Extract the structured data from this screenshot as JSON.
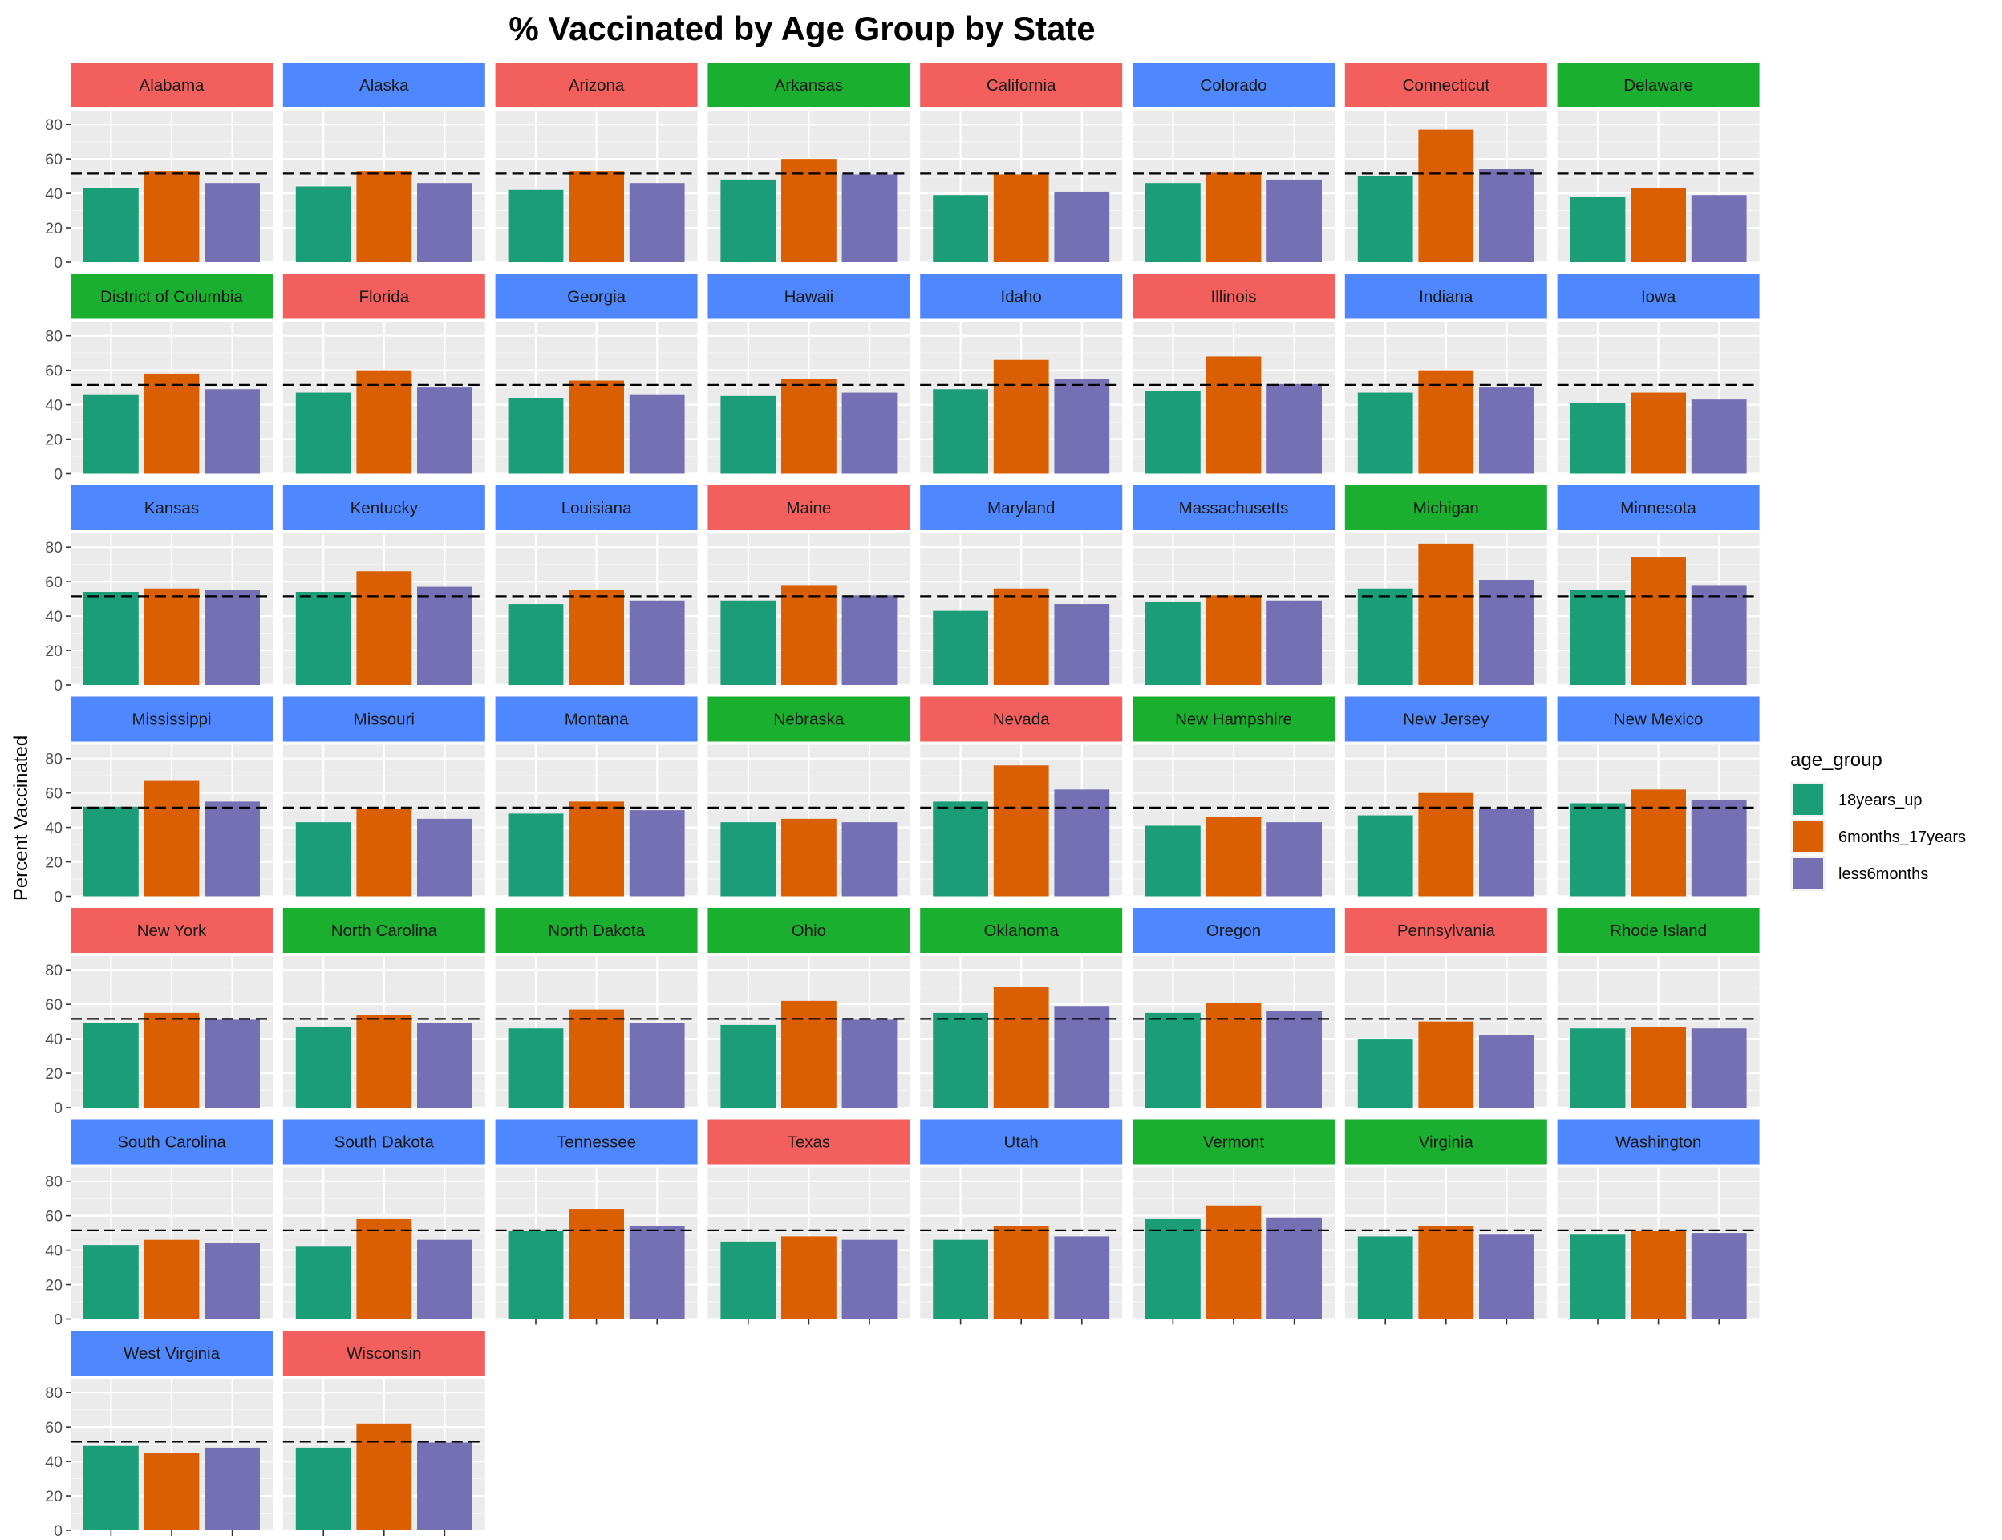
{
  "chart_data": {
    "type": "bar",
    "title": "% Vaccinated by Age Group by State",
    "xlabel": "",
    "ylabel": "Percent Vaccinated",
    "ylim": [
      0,
      88
    ],
    "yticks": [
      0,
      20,
      40,
      60,
      80
    ],
    "reference_line": {
      "y": 51.5,
      "style": "dashed",
      "color": "#000000"
    },
    "legend": {
      "title": "age_group",
      "placement": "right",
      "entries": [
        {
          "name": "18years_up",
          "color": "#1B9E77"
        },
        {
          "name": "6months_17years",
          "color": "#D95F02"
        },
        {
          "name": "less6months",
          "color": "#7570B3"
        }
      ]
    },
    "strip_colors": {
      "red": "#F25F5C",
      "blue": "#4F87FF",
      "green": "#1AAF2E"
    },
    "grid": true,
    "facet_columns": 8,
    "panels": [
      {
        "state": "Alabama",
        "strip": "red",
        "values": [
          43,
          53,
          46
        ]
      },
      {
        "state": "Alaska",
        "strip": "blue",
        "values": [
          44,
          53,
          46
        ]
      },
      {
        "state": "Arizona",
        "strip": "red",
        "values": [
          42,
          53,
          46
        ]
      },
      {
        "state": "Arkansas",
        "strip": "green",
        "values": [
          48,
          60,
          51
        ]
      },
      {
        "state": "California",
        "strip": "red",
        "values": [
          39,
          51,
          41
        ]
      },
      {
        "state": "Colorado",
        "strip": "blue",
        "values": [
          46,
          52,
          48
        ]
      },
      {
        "state": "Connecticut",
        "strip": "red",
        "values": [
          50,
          77,
          54
        ]
      },
      {
        "state": "Delaware",
        "strip": "green",
        "values": [
          38,
          43,
          39
        ]
      },
      {
        "state": "District of Columbia",
        "strip": "green",
        "values": [
          46,
          58,
          49
        ]
      },
      {
        "state": "Florida",
        "strip": "red",
        "values": [
          47,
          60,
          50
        ]
      },
      {
        "state": "Georgia",
        "strip": "blue",
        "values": [
          44,
          54,
          46
        ]
      },
      {
        "state": "Hawaii",
        "strip": "blue",
        "values": [
          45,
          55,
          47
        ]
      },
      {
        "state": "Idaho",
        "strip": "blue",
        "values": [
          49,
          66,
          55
        ]
      },
      {
        "state": "Illinois",
        "strip": "red",
        "values": [
          48,
          68,
          52
        ]
      },
      {
        "state": "Indiana",
        "strip": "blue",
        "values": [
          47,
          60,
          50
        ]
      },
      {
        "state": "Iowa",
        "strip": "blue",
        "values": [
          41,
          47,
          43
        ]
      },
      {
        "state": "Kansas",
        "strip": "blue",
        "values": [
          54,
          56,
          55
        ]
      },
      {
        "state": "Kentucky",
        "strip": "blue",
        "values": [
          54,
          66,
          57
        ]
      },
      {
        "state": "Louisiana",
        "strip": "blue",
        "values": [
          47,
          55,
          49
        ]
      },
      {
        "state": "Maine",
        "strip": "red",
        "values": [
          49,
          58,
          52
        ]
      },
      {
        "state": "Maryland",
        "strip": "blue",
        "values": [
          43,
          56,
          47
        ]
      },
      {
        "state": "Massachusetts",
        "strip": "blue",
        "values": [
          48,
          52,
          49
        ]
      },
      {
        "state": "Michigan",
        "strip": "green",
        "values": [
          56,
          82,
          61
        ]
      },
      {
        "state": "Minnesota",
        "strip": "blue",
        "values": [
          55,
          74,
          58
        ]
      },
      {
        "state": "Mississippi",
        "strip": "blue",
        "values": [
          52,
          67,
          55
        ]
      },
      {
        "state": "Missouri",
        "strip": "blue",
        "values": [
          43,
          51,
          45
        ]
      },
      {
        "state": "Montana",
        "strip": "blue",
        "values": [
          48,
          55,
          50
        ]
      },
      {
        "state": "Nebraska",
        "strip": "green",
        "values": [
          43,
          45,
          43
        ]
      },
      {
        "state": "Nevada",
        "strip": "red",
        "values": [
          55,
          76,
          62
        ]
      },
      {
        "state": "New Hampshire",
        "strip": "green",
        "values": [
          41,
          46,
          43
        ]
      },
      {
        "state": "New Jersey",
        "strip": "blue",
        "values": [
          47,
          60,
          51
        ]
      },
      {
        "state": "New Mexico",
        "strip": "blue",
        "values": [
          54,
          62,
          56
        ]
      },
      {
        "state": "New York",
        "strip": "red",
        "values": [
          49,
          55,
          51
        ]
      },
      {
        "state": "North Carolina",
        "strip": "green",
        "values": [
          47,
          54,
          49
        ]
      },
      {
        "state": "North Dakota",
        "strip": "green",
        "values": [
          46,
          57,
          49
        ]
      },
      {
        "state": "Ohio",
        "strip": "green",
        "values": [
          48,
          62,
          51
        ]
      },
      {
        "state": "Oklahoma",
        "strip": "green",
        "values": [
          55,
          70,
          59
        ]
      },
      {
        "state": "Oregon",
        "strip": "blue",
        "values": [
          55,
          61,
          56
        ]
      },
      {
        "state": "Pennsylvania",
        "strip": "red",
        "values": [
          40,
          50,
          42
        ]
      },
      {
        "state": "Rhode Island",
        "strip": "green",
        "values": [
          46,
          47,
          46
        ]
      },
      {
        "state": "South Carolina",
        "strip": "blue",
        "values": [
          43,
          46,
          44
        ]
      },
      {
        "state": "South Dakota",
        "strip": "blue",
        "values": [
          42,
          58,
          46
        ]
      },
      {
        "state": "Tennessee",
        "strip": "blue",
        "values": [
          51,
          64,
          54
        ]
      },
      {
        "state": "Texas",
        "strip": "red",
        "values": [
          45,
          48,
          46
        ]
      },
      {
        "state": "Utah",
        "strip": "blue",
        "values": [
          46,
          54,
          48
        ]
      },
      {
        "state": "Vermont",
        "strip": "green",
        "values": [
          58,
          66,
          59
        ]
      },
      {
        "state": "Virginia",
        "strip": "green",
        "values": [
          48,
          54,
          49
        ]
      },
      {
        "state": "Washington",
        "strip": "blue",
        "values": [
          49,
          51,
          50
        ]
      },
      {
        "state": "West Virginia",
        "strip": "blue",
        "values": [
          49,
          45,
          48
        ]
      },
      {
        "state": "Wisconsin",
        "strip": "red",
        "values": [
          48,
          62,
          51
        ]
      }
    ]
  }
}
